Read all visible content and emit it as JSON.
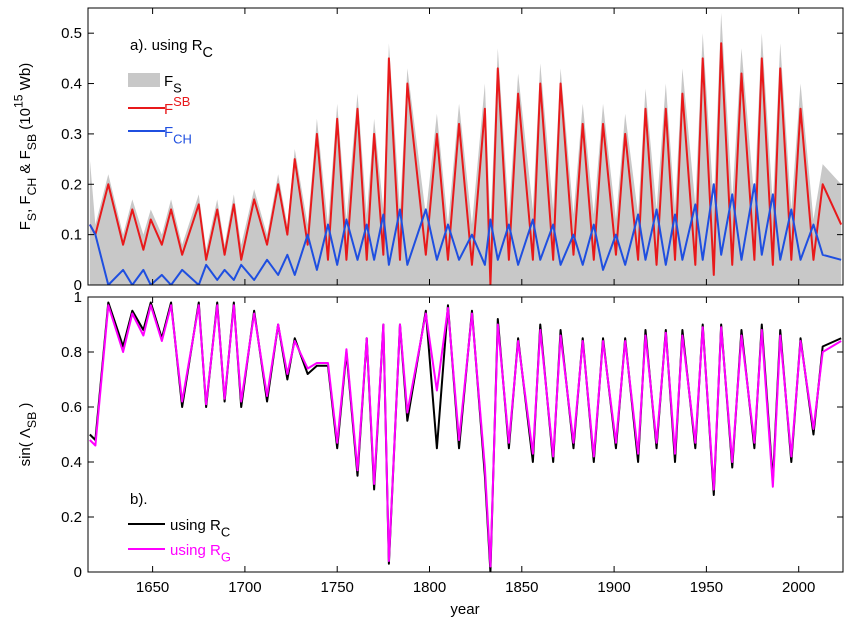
{
  "chart_data": [
    {
      "type": "line",
      "annotation": "a). using R",
      "annotation_sub": "C",
      "ylabel": [
        "F",
        "S",
        ", F",
        "CH",
        " & F",
        "SB",
        " (10",
        "15",
        " Wb)"
      ],
      "xlim": [
        1615,
        2024
      ],
      "ylim": [
        0,
        0.55
      ],
      "yticks": [
        0,
        0.1,
        0.2,
        0.3,
        0.4,
        0.5
      ],
      "x": [
        1616,
        1619,
        1626,
        1634,
        1639,
        1645,
        1649,
        1655,
        1660,
        1666,
        1675,
        1679,
        1685,
        1689,
        1694,
        1698,
        1705,
        1712,
        1718,
        1723,
        1727,
        1734,
        1739,
        1745,
        1750,
        1755,
        1761,
        1766,
        1770,
        1775,
        1778,
        1784,
        1788,
        1798,
        1804,
        1810,
        1816,
        1823,
        1830,
        1833,
        1837,
        1843,
        1848,
        1856,
        1860,
        1867,
        1871,
        1878,
        1883,
        1889,
        1894,
        1901,
        1906,
        1913,
        1917,
        1923,
        1928,
        1933,
        1937,
        1944,
        1948,
        1954,
        1958,
        1964,
        1969,
        1976,
        1980,
        1986,
        1990,
        1996,
        2001,
        2008,
        2013,
        2023
      ],
      "series": [
        {
          "name": "F",
          "subscript": "S",
          "color": "#c8c8c8",
          "style": "area",
          "values": [
            0.25,
            0.12,
            0.22,
            0.1,
            0.17,
            0.1,
            0.15,
            0.1,
            0.17,
            0.08,
            0.18,
            0.07,
            0.17,
            0.08,
            0.18,
            0.08,
            0.19,
            0.1,
            0.22,
            0.12,
            0.27,
            0.12,
            0.33,
            0.12,
            0.36,
            0.13,
            0.38,
            0.14,
            0.33,
            0.15,
            0.48,
            0.15,
            0.43,
            0.14,
            0.34,
            0.12,
            0.36,
            0.12,
            0.4,
            0.12,
            0.47,
            0.14,
            0.42,
            0.15,
            0.44,
            0.15,
            0.43,
            0.14,
            0.36,
            0.14,
            0.36,
            0.13,
            0.34,
            0.14,
            0.39,
            0.15,
            0.4,
            0.15,
            0.43,
            0.16,
            0.5,
            0.16,
            0.54,
            0.17,
            0.47,
            0.17,
            0.5,
            0.16,
            0.48,
            0.15,
            0.4,
            0.13,
            0.24,
            0.2
          ]
        },
        {
          "name": "F",
          "superscript": "SB",
          "color": "#e8191b",
          "style": "line",
          "values": [
            0.12,
            0.1,
            0.2,
            0.08,
            0.15,
            0.07,
            0.13,
            0.08,
            0.15,
            0.06,
            0.16,
            0.05,
            0.15,
            0.06,
            0.16,
            0.05,
            0.17,
            0.08,
            0.2,
            0.1,
            0.25,
            0.08,
            0.3,
            0.05,
            0.33,
            0.05,
            0.35,
            0.05,
            0.3,
            0.06,
            0.45,
            0.05,
            0.4,
            0.06,
            0.3,
            0.05,
            0.32,
            0.04,
            0.35,
            0.0,
            0.43,
            0.05,
            0.38,
            0.05,
            0.4,
            0.05,
            0.4,
            0.06,
            0.32,
            0.05,
            0.32,
            0.06,
            0.3,
            0.05,
            0.35,
            0.04,
            0.35,
            0.05,
            0.38,
            0.04,
            0.45,
            0.02,
            0.48,
            0.04,
            0.42,
            0.05,
            0.45,
            0.04,
            0.43,
            0.05,
            0.35,
            0.05,
            0.2,
            0.12
          ]
        },
        {
          "name": "F",
          "subscript": "CH",
          "color": "#1f4fe0",
          "style": "line",
          "values": [
            0.12,
            0.1,
            0.0,
            0.03,
            0.0,
            0.03,
            0.0,
            0.02,
            0.0,
            0.03,
            0.0,
            0.04,
            0.01,
            0.03,
            0.01,
            0.04,
            0.01,
            0.05,
            0.02,
            0.06,
            0.02,
            0.1,
            0.03,
            0.12,
            0.04,
            0.13,
            0.05,
            0.12,
            0.05,
            0.14,
            0.04,
            0.15,
            0.04,
            0.15,
            0.05,
            0.12,
            0.05,
            0.1,
            0.04,
            0.13,
            0.05,
            0.12,
            0.04,
            0.13,
            0.05,
            0.12,
            0.04,
            0.1,
            0.04,
            0.12,
            0.03,
            0.1,
            0.04,
            0.14,
            0.05,
            0.15,
            0.04,
            0.14,
            0.05,
            0.16,
            0.05,
            0.2,
            0.06,
            0.18,
            0.05,
            0.2,
            0.06,
            0.18,
            0.05,
            0.15,
            0.05,
            0.12,
            0.06,
            0.05
          ]
        }
      ]
    },
    {
      "type": "line",
      "annotation": "b).",
      "ylabel": [
        "sin( Λ",
        "SB",
        " )"
      ],
      "xlabel": "year",
      "xlim": [
        1615,
        2024
      ],
      "ylim": [
        0,
        1
      ],
      "yticks": [
        0,
        0.2,
        0.4,
        0.6,
        0.8,
        1
      ],
      "xticks": [
        1650,
        1700,
        1750,
        1800,
        1850,
        1900,
        1950,
        2000
      ],
      "x": [
        1616,
        1619,
        1626,
        1634,
        1639,
        1645,
        1649,
        1655,
        1660,
        1666,
        1675,
        1679,
        1685,
        1689,
        1694,
        1698,
        1705,
        1712,
        1718,
        1723,
        1727,
        1734,
        1739,
        1745,
        1750,
        1755,
        1761,
        1766,
        1770,
        1775,
        1778,
        1784,
        1788,
        1798,
        1804,
        1810,
        1816,
        1823,
        1830,
        1833,
        1837,
        1843,
        1848,
        1856,
        1860,
        1867,
        1871,
        1878,
        1883,
        1889,
        1894,
        1901,
        1906,
        1913,
        1917,
        1923,
        1928,
        1933,
        1937,
        1944,
        1948,
        1954,
        1958,
        1964,
        1969,
        1976,
        1980,
        1986,
        1990,
        1996,
        2001,
        2008,
        2013,
        2023
      ],
      "series": [
        {
          "name": "using R",
          "subscript": "C",
          "color": "#000000",
          "style": "line",
          "values": [
            0.5,
            0.48,
            0.98,
            0.82,
            0.95,
            0.88,
            0.98,
            0.85,
            0.98,
            0.6,
            0.98,
            0.6,
            0.98,
            0.62,
            0.98,
            0.6,
            0.95,
            0.62,
            0.9,
            0.7,
            0.85,
            0.72,
            0.75,
            0.75,
            0.45,
            0.8,
            0.35,
            0.85,
            0.3,
            0.9,
            0.03,
            0.9,
            0.55,
            0.95,
            0.45,
            0.97,
            0.45,
            0.95,
            0.35,
            0.0,
            0.92,
            0.45,
            0.85,
            0.4,
            0.9,
            0.4,
            0.88,
            0.45,
            0.85,
            0.4,
            0.85,
            0.45,
            0.85,
            0.4,
            0.88,
            0.45,
            0.88,
            0.4,
            0.88,
            0.45,
            0.9,
            0.28,
            0.9,
            0.38,
            0.88,
            0.45,
            0.9,
            0.33,
            0.88,
            0.4,
            0.85,
            0.5,
            0.82,
            0.85
          ]
        },
        {
          "name": "using R",
          "subscript": "G",
          "color": "#ff00ff",
          "style": "line",
          "values": [
            0.48,
            0.46,
            0.97,
            0.8,
            0.94,
            0.86,
            0.97,
            0.84,
            0.97,
            0.62,
            0.97,
            0.61,
            0.97,
            0.63,
            0.97,
            0.62,
            0.94,
            0.64,
            0.9,
            0.72,
            0.84,
            0.74,
            0.76,
            0.76,
            0.47,
            0.81,
            0.37,
            0.85,
            0.32,
            0.9,
            0.04,
            0.9,
            0.58,
            0.94,
            0.66,
            0.96,
            0.48,
            0.94,
            0.38,
            0.02,
            0.9,
            0.47,
            0.84,
            0.43,
            0.88,
            0.42,
            0.86,
            0.47,
            0.84,
            0.42,
            0.84,
            0.47,
            0.84,
            0.43,
            0.86,
            0.47,
            0.87,
            0.43,
            0.86,
            0.47,
            0.89,
            0.3,
            0.89,
            0.4,
            0.86,
            0.47,
            0.88,
            0.31,
            0.86,
            0.42,
            0.84,
            0.52,
            0.8,
            0.84
          ]
        }
      ]
    }
  ]
}
